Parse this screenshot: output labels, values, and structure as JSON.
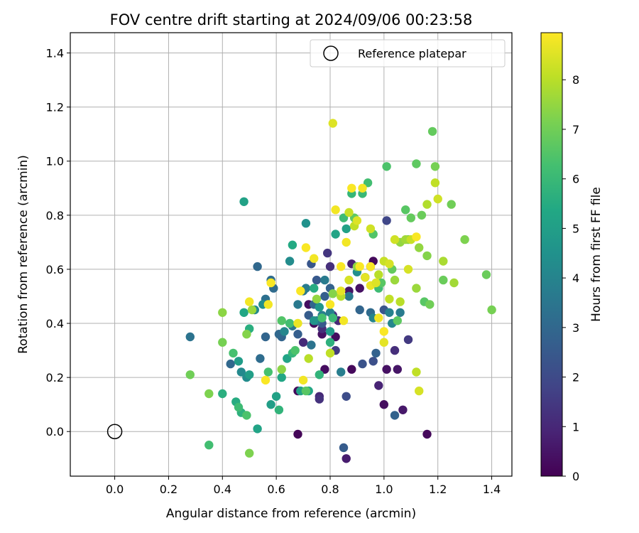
{
  "chart_data": {
    "type": "scatter",
    "title": "FOV centre drift starting at 2024/09/06 00:23:58",
    "xlabel": "Angular distance from reference (arcmin)",
    "ylabel": "Rotation from reference (arcmin)",
    "xlim": [
      -0.165,
      1.475
    ],
    "ylim": [
      -0.165,
      1.475
    ],
    "xticks": [
      0.0,
      0.2,
      0.4,
      0.6,
      0.8,
      1.0,
      1.2,
      1.4
    ],
    "yticks": [
      0.0,
      0.2,
      0.4,
      0.6,
      0.8,
      1.0,
      1.2,
      1.4
    ],
    "xtick_labels": [
      "0.0",
      "0.2",
      "0.4",
      "0.6",
      "0.8",
      "1.0",
      "1.2",
      "1.4"
    ],
    "ytick_labels": [
      "0.0",
      "0.2",
      "0.4",
      "0.6",
      "0.8",
      "1.0",
      "1.2",
      "1.4"
    ],
    "grid": true,
    "legend": {
      "position": "top-right",
      "entries": [
        {
          "label": "Reference platepar",
          "marker": "hollow-circle"
        }
      ]
    },
    "reference_point": {
      "x": 0.0,
      "y": 0.0
    },
    "colorbar": {
      "label": "Hours from first FF file",
      "colormap": "viridis",
      "min": 0,
      "max": 8.95,
      "ticks": [
        0,
        1,
        2,
        3,
        4,
        5,
        6,
        7,
        8
      ],
      "tick_labels": [
        "0",
        "1",
        "2",
        "3",
        "4",
        "5",
        "6",
        "7",
        "8"
      ],
      "colors": [
        "#440154",
        "#482475",
        "#414487",
        "#355f8d",
        "#2a788e",
        "#21918c",
        "#22a884",
        "#44bf70",
        "#7ad151",
        "#bddf26",
        "#fde725"
      ]
    },
    "series": [
      {
        "points": [
          [
            0.68,
            -0.01,
            0.1
          ],
          [
            0.72,
            0.47,
            0.3
          ],
          [
            0.74,
            0.4,
            0.2
          ],
          [
            0.77,
            0.36,
            0.4
          ],
          [
            0.78,
            0.23,
            0.3
          ],
          [
            0.68,
            0.15,
            0.2
          ],
          [
            0.82,
            0.35,
            0.3
          ],
          [
            0.87,
            0.52,
            0.5
          ],
          [
            0.88,
            0.23,
            0.2
          ],
          [
            0.91,
            0.53,
            0.4
          ],
          [
            0.96,
            0.63,
            0.2
          ],
          [
            1.0,
            0.1,
            0.3
          ],
          [
            1.01,
            0.23,
            0.4
          ],
          [
            1.05,
            0.23,
            0.5
          ],
          [
            1.07,
            0.08,
            0.6
          ],
          [
            1.16,
            -0.01,
            0.2
          ],
          [
            0.86,
            -0.1,
            0.7
          ],
          [
            0.98,
            0.17,
            0.9
          ],
          [
            0.76,
            0.13,
            1.0
          ],
          [
            0.88,
            0.62,
            0.8
          ],
          [
            0.95,
            0.61,
            0.9
          ],
          [
            0.77,
            0.38,
            1.2
          ],
          [
            0.7,
            0.33,
            1.1
          ],
          [
            0.76,
            0.12,
            1.3
          ],
          [
            0.83,
            0.41,
            1.0
          ],
          [
            1.04,
            0.3,
            1.2
          ],
          [
            1.09,
            0.34,
            1.5
          ],
          [
            0.81,
            0.43,
            1.3
          ],
          [
            0.79,
            0.66,
            1.4
          ],
          [
            0.8,
            0.61,
            1.2
          ],
          [
            0.82,
            0.3,
            1.5
          ],
          [
            0.86,
            0.13,
            2.1
          ],
          [
            0.92,
            0.25,
            2.3
          ],
          [
            0.96,
            0.26,
            2.2
          ],
          [
            1.0,
            0.45,
            2.4
          ],
          [
            1.01,
            0.78,
            1.9
          ],
          [
            0.85,
            -0.06,
            2.6
          ],
          [
            1.04,
            0.06,
            2.8
          ],
          [
            0.77,
            0.4,
            2.5
          ],
          [
            0.73,
            0.62,
            2.4
          ],
          [
            0.68,
            0.36,
            2.7
          ],
          [
            0.72,
            0.43,
            2.6
          ],
          [
            0.74,
            0.47,
            2.9
          ],
          [
            0.75,
            0.56,
            2.5
          ],
          [
            0.78,
            0.5,
            2.7
          ],
          [
            0.8,
            0.53,
            2.8
          ],
          [
            0.91,
            0.45,
            2.9
          ],
          [
            0.93,
            0.57,
            3.0
          ],
          [
            0.95,
            0.44,
            3.1
          ],
          [
            0.97,
            0.29,
            2.8
          ],
          [
            0.62,
            0.35,
            2.9
          ],
          [
            0.61,
            0.36,
            3.0
          ],
          [
            0.56,
            0.35,
            2.9
          ],
          [
            0.54,
            0.27,
            3.2
          ],
          [
            0.53,
            0.61,
            3.0
          ],
          [
            0.56,
            0.49,
            3.3
          ],
          [
            0.58,
            0.56,
            3.2
          ],
          [
            0.59,
            0.53,
            3.1
          ],
          [
            0.43,
            0.25,
            3.0
          ],
          [
            0.28,
            0.35,
            3.4
          ],
          [
            0.66,
            0.39,
            3.5
          ],
          [
            0.68,
            0.47,
            3.6
          ],
          [
            0.7,
            0.52,
            3.5
          ],
          [
            0.71,
            0.53,
            3.7
          ],
          [
            0.73,
            0.32,
            3.4
          ],
          [
            0.75,
            0.41,
            3.6
          ],
          [
            0.77,
            0.43,
            3.8
          ],
          [
            0.78,
            0.56,
            3.7
          ],
          [
            0.8,
            0.44,
            3.9
          ],
          [
            0.84,
            0.22,
            3.8
          ],
          [
            0.87,
            0.5,
            3.6
          ],
          [
            1.02,
            0.44,
            3.9
          ],
          [
            1.06,
            0.44,
            3.7
          ],
          [
            1.03,
            0.4,
            4.1
          ],
          [
            0.96,
            0.42,
            4.0
          ],
          [
            0.47,
            0.22,
            4.2
          ],
          [
            0.49,
            0.2,
            4.3
          ],
          [
            0.52,
            0.45,
            4.2
          ],
          [
            0.55,
            0.47,
            4.4
          ],
          [
            0.63,
            0.37,
            4.1
          ],
          [
            0.65,
            0.63,
            4.3
          ],
          [
            0.71,
            0.77,
            4.5
          ],
          [
            0.74,
            0.41,
            4.6
          ],
          [
            0.76,
            0.46,
            4.7
          ],
          [
            0.9,
            0.59,
            4.4
          ],
          [
            0.8,
            0.37,
            4.8
          ],
          [
            0.46,
            0.26,
            4.9
          ],
          [
            0.5,
            0.21,
            5.0
          ],
          [
            0.48,
            0.85,
            5.1
          ],
          [
            0.53,
            0.01,
            5.2
          ],
          [
            0.58,
            0.1,
            5.0
          ],
          [
            0.6,
            0.13,
            5.1
          ],
          [
            0.62,
            0.2,
            5.3
          ],
          [
            0.64,
            0.27,
            5.2
          ],
          [
            0.66,
            0.69,
            5.4
          ],
          [
            0.69,
            0.15,
            5.1
          ],
          [
            0.72,
            0.15,
            5.3
          ],
          [
            0.74,
            0.53,
            5.5
          ],
          [
            0.82,
            0.73,
            5.2
          ],
          [
            0.86,
            0.75,
            5.1
          ],
          [
            0.48,
            0.44,
            5.3
          ],
          [
            0.4,
            0.14,
            5.6
          ],
          [
            0.45,
            0.11,
            5.5
          ],
          [
            0.47,
            0.07,
            5.7
          ],
          [
            0.5,
            0.38,
            5.6
          ],
          [
            0.61,
            0.08,
            5.8
          ],
          [
            0.66,
            0.29,
            5.9
          ],
          [
            0.76,
            0.21,
            5.8
          ],
          [
            0.8,
            0.33,
            5.7
          ],
          [
            0.81,
            0.42,
            6.0
          ],
          [
            0.85,
            0.79,
            6.1
          ],
          [
            0.88,
            0.88,
            5.9
          ],
          [
            0.92,
            0.88,
            6.0
          ],
          [
            0.94,
            0.92,
            6.2
          ],
          [
            0.98,
            0.53,
            6.1
          ],
          [
            0.35,
            -0.05,
            6.2
          ],
          [
            0.44,
            0.29,
            6.3
          ],
          [
            0.46,
            0.09,
            6.1
          ],
          [
            0.49,
            0.06,
            6.4
          ],
          [
            0.57,
            0.22,
            6.3
          ],
          [
            0.62,
            0.41,
            6.5
          ],
          [
            0.65,
            0.4,
            6.2
          ],
          [
            0.67,
            0.3,
            6.4
          ],
          [
            0.71,
            0.15,
            6.6
          ],
          [
            0.77,
            0.42,
            6.3
          ],
          [
            0.89,
            0.79,
            6.7
          ],
          [
            0.96,
            0.73,
            6.5
          ],
          [
            0.99,
            0.55,
            6.6
          ],
          [
            1.01,
            0.98,
            6.4
          ],
          [
            1.03,
            0.6,
            6.8
          ],
          [
            1.05,
            0.41,
            6.7
          ],
          [
            1.08,
            0.82,
            6.6
          ],
          [
            1.09,
            0.71,
            6.9
          ],
          [
            1.1,
            0.79,
            6.8
          ],
          [
            1.12,
            0.99,
            6.7
          ],
          [
            1.14,
            0.8,
            6.9
          ],
          [
            1.15,
            0.48,
            6.6
          ],
          [
            1.17,
            0.47,
            7.0
          ],
          [
            1.18,
            1.11,
            6.8
          ],
          [
            1.19,
            0.98,
            7.1
          ],
          [
            1.22,
            0.56,
            6.9
          ],
          [
            1.25,
            0.84,
            7.0
          ],
          [
            1.3,
            0.71,
            7.2
          ],
          [
            1.38,
            0.58,
            6.9
          ],
          [
            1.4,
            0.45,
            7.1
          ],
          [
            0.28,
            0.21,
            7.0
          ],
          [
            0.35,
            0.14,
            7.2
          ],
          [
            0.4,
            0.33,
            7.1
          ],
          [
            0.49,
            0.36,
            7.3
          ],
          [
            0.5,
            -0.08,
            7.2
          ],
          [
            0.62,
            0.23,
            7.4
          ],
          [
            0.75,
            0.49,
            7.5
          ],
          [
            0.81,
            0.51,
            7.3
          ],
          [
            0.9,
            0.61,
            7.4
          ],
          [
            1.04,
            0.56,
            7.6
          ],
          [
            1.06,
            0.7,
            7.5
          ],
          [
            1.08,
            0.71,
            7.7
          ],
          [
            1.12,
            0.53,
            7.6
          ],
          [
            1.13,
            0.68,
            7.5
          ],
          [
            1.16,
            0.65,
            7.3
          ],
          [
            1.22,
            0.63,
            7.8
          ],
          [
            1.26,
            0.55,
            7.7
          ],
          [
            1.16,
            0.84,
            7.9
          ],
          [
            0.4,
            0.44,
            7.4
          ],
          [
            0.51,
            0.45,
            7.6
          ],
          [
            0.72,
            0.27,
            8.0
          ],
          [
            0.8,
            0.29,
            8.1
          ],
          [
            0.84,
            0.5,
            8.0
          ],
          [
            0.87,
            0.81,
            8.2
          ],
          [
            0.89,
            0.76,
            8.1
          ],
          [
            0.95,
            0.75,
            8.3
          ],
          [
            0.98,
            0.58,
            8.0
          ],
          [
            1.0,
            0.63,
            8.2
          ],
          [
            1.02,
            0.49,
            8.1
          ],
          [
            1.04,
            0.71,
            8.3
          ],
          [
            1.06,
            0.48,
            8.0
          ],
          [
            1.09,
            0.6,
            8.4
          ],
          [
            1.1,
            0.71,
            8.2
          ],
          [
            1.12,
            0.22,
            8.1
          ],
          [
            1.13,
            0.15,
            8.4
          ],
          [
            1.19,
            0.92,
            8.1
          ],
          [
            1.2,
            0.86,
            8.3
          ],
          [
            0.81,
            1.14,
            8.5
          ],
          [
            0.84,
            0.52,
            8.6
          ],
          [
            0.87,
            0.56,
            8.4
          ],
          [
            0.9,
            0.78,
            8.5
          ],
          [
            0.93,
            0.57,
            8.6
          ],
          [
            0.95,
            0.54,
            8.7
          ],
          [
            0.97,
            0.55,
            8.5
          ],
          [
            1.0,
            0.33,
            8.6
          ],
          [
            1.02,
            0.62,
            8.4
          ],
          [
            0.68,
            0.4,
            8.7
          ],
          [
            0.5,
            0.48,
            8.8
          ],
          [
            0.56,
            0.19,
            8.9
          ],
          [
            0.57,
            0.47,
            8.8
          ],
          [
            0.58,
            0.55,
            8.9
          ],
          [
            0.69,
            0.52,
            8.9
          ],
          [
            0.7,
            0.19,
            8.8
          ],
          [
            0.71,
            0.68,
            8.9
          ],
          [
            0.74,
            0.64,
            8.8
          ],
          [
            0.8,
            0.47,
            8.9
          ],
          [
            0.82,
            0.82,
            8.8
          ],
          [
            0.84,
            0.61,
            8.9
          ],
          [
            0.85,
            0.41,
            8.8
          ],
          [
            0.88,
            0.9,
            8.9
          ],
          [
            0.91,
            0.61,
            8.9
          ],
          [
            0.92,
            0.9,
            8.8
          ],
          [
            0.95,
            0.61,
            8.9
          ],
          [
            0.98,
            0.42,
            8.8
          ],
          [
            1.0,
            0.37,
            8.9
          ],
          [
            1.12,
            0.72,
            8.9
          ],
          [
            0.86,
            0.7,
            8.8
          ]
        ]
      }
    ]
  }
}
